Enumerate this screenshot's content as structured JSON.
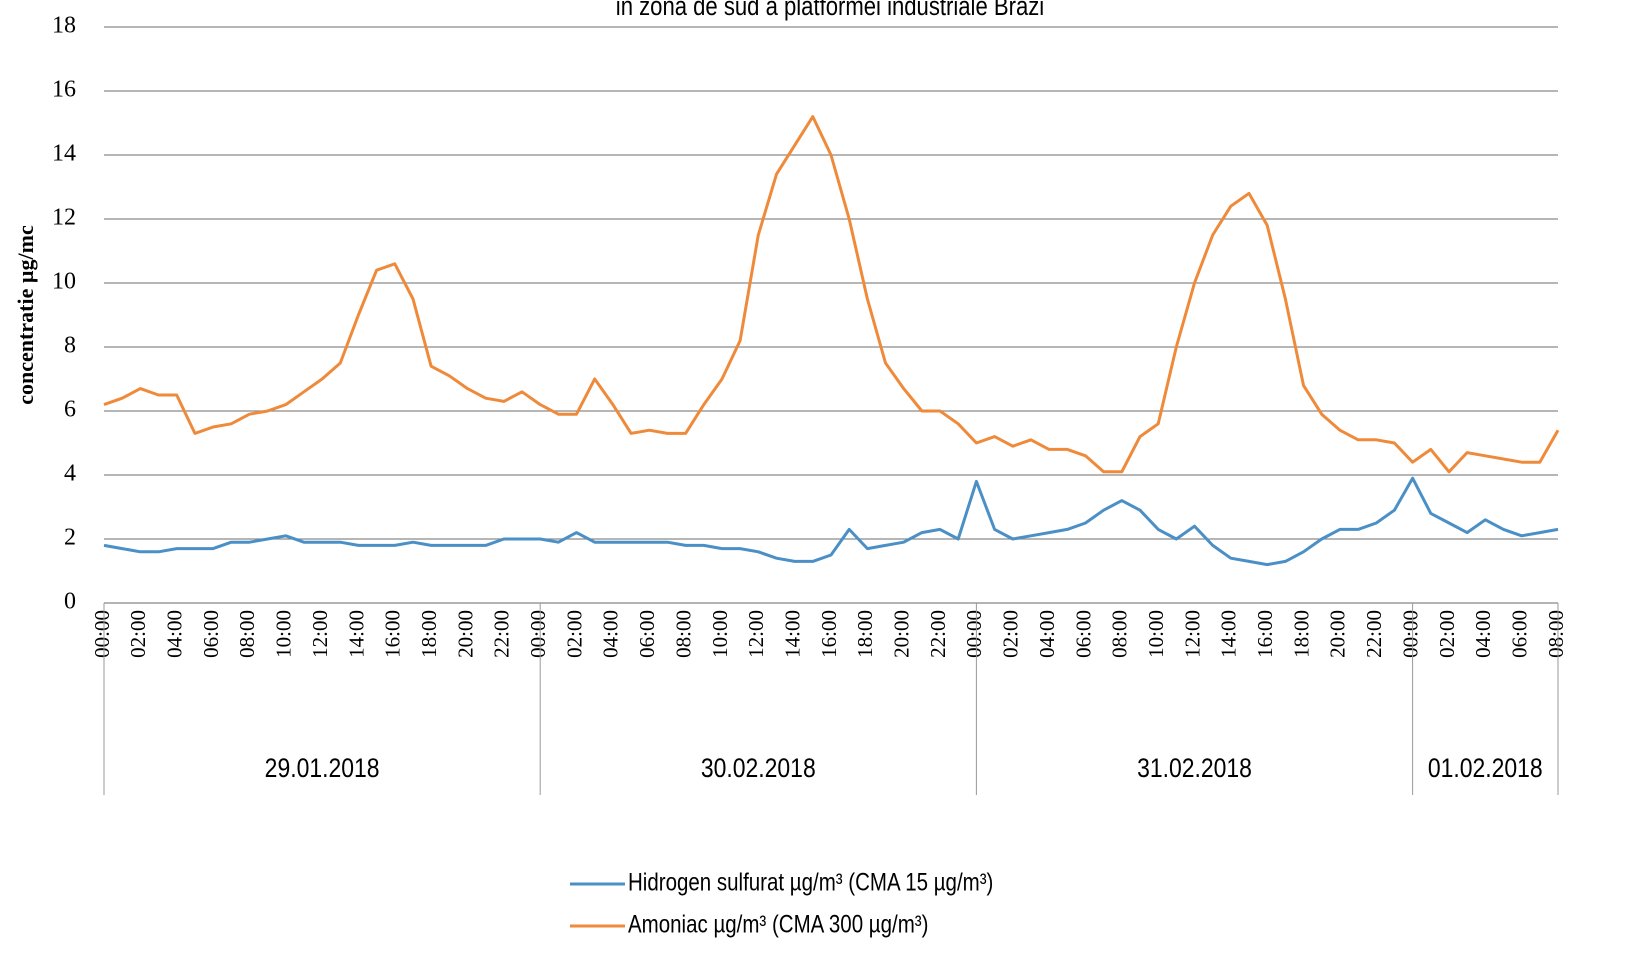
{
  "chart_data": {
    "type": "line",
    "title": "in zona de sud a platformei industriale Brazi",
    "y_label": "concentratie µg/mc",
    "categories": [
      "00:00",
      null,
      "02:00",
      null,
      "04:00",
      null,
      "06:00",
      null,
      "08:00",
      null,
      "10:00",
      null,
      "12:00",
      null,
      "14:00",
      null,
      "16:00",
      null,
      "18:00",
      null,
      "20:00",
      null,
      "22:00",
      null,
      "00:00",
      null,
      "02:00",
      null,
      "04:00",
      null,
      "06:00",
      null,
      "08:00",
      null,
      "10:00",
      null,
      "12:00",
      null,
      "14:00",
      null,
      "16:00",
      null,
      "18:00",
      null,
      "20:00",
      null,
      "22:00",
      null,
      "00:00",
      null,
      "02:00",
      null,
      "04:00",
      null,
      "06:00",
      null,
      "08:00",
      null,
      "10:00",
      null,
      "12:00",
      null,
      "14:00",
      null,
      "16:00",
      null,
      "18:00",
      null,
      "20:00",
      null,
      "22:00",
      null,
      "00:00",
      null,
      "02:00",
      null,
      "04:00",
      null,
      "06:00",
      null,
      "08:00"
    ],
    "groups": [
      {
        "label": "29.01.2018",
        "start": 0
      },
      {
        "label": "30.02.2018",
        "start": 24
      },
      {
        "label": "31.02.2018",
        "start": 48
      },
      {
        "label": "01.02.2018",
        "start": 72
      }
    ],
    "series": [
      {
        "name": "Hidrogen sulfurat µg/m³ (CMA 15 µg/m³)",
        "color": "#4a8fc6",
        "values": [
          1.8,
          1.7,
          1.6,
          1.6,
          1.7,
          1.7,
          1.7,
          1.9,
          1.9,
          2.0,
          2.1,
          1.9,
          1.9,
          1.9,
          1.8,
          1.8,
          1.8,
          1.9,
          1.8,
          1.8,
          1.8,
          1.8,
          2.0,
          2.0,
          2.0,
          1.9,
          2.2,
          1.9,
          1.9,
          1.9,
          1.9,
          1.9,
          1.8,
          1.8,
          1.7,
          1.7,
          1.6,
          1.4,
          1.3,
          1.3,
          1.5,
          2.3,
          1.7,
          1.8,
          1.9,
          2.2,
          2.3,
          2.0,
          3.8,
          2.3,
          2.0,
          2.1,
          2.2,
          2.3,
          2.5,
          2.9,
          3.2,
          2.9,
          2.3,
          2.0,
          2.4,
          1.8,
          1.4,
          1.3,
          1.2,
          1.3,
          1.6,
          2.0,
          2.3,
          2.3,
          2.5,
          2.9,
          3.9,
          2.8,
          2.5,
          2.2,
          2.6,
          2.3,
          2.1,
          2.2,
          2.3
        ]
      },
      {
        "name": "Amoniac µg/m³ (CMA 300 µg/m³)",
        "color": "#ef8a3a",
        "values": [
          6.2,
          6.4,
          6.7,
          6.5,
          6.5,
          5.3,
          5.5,
          5.6,
          5.9,
          6.0,
          6.2,
          6.6,
          7.0,
          7.5,
          9.0,
          10.4,
          10.6,
          9.5,
          7.4,
          7.1,
          6.7,
          6.4,
          6.3,
          6.6,
          6.2,
          5.9,
          5.9,
          7.0,
          6.2,
          5.3,
          5.4,
          5.3,
          5.3,
          6.2,
          7.0,
          8.2,
          11.5,
          13.4,
          14.3,
          15.2,
          14.0,
          12.0,
          9.5,
          7.5,
          6.7,
          6.0,
          6.0,
          5.6,
          5.0,
          5.2,
          4.9,
          5.1,
          4.8,
          4.8,
          4.6,
          4.1,
          4.1,
          5.2,
          5.6,
          8.0,
          10.0,
          11.5,
          12.4,
          12.8,
          11.8,
          9.5,
          6.8,
          5.9,
          5.4,
          5.1,
          5.1,
          5.0,
          4.4,
          4.8,
          4.1,
          4.7,
          4.6,
          4.5,
          4.4,
          4.4,
          5.4
        ]
      }
    ],
    "ylim": [
      0,
      18
    ],
    "yticks": [
      0,
      2,
      4,
      6,
      8,
      10,
      12,
      14,
      16,
      18
    ],
    "grid": true,
    "legend": "bottom"
  }
}
